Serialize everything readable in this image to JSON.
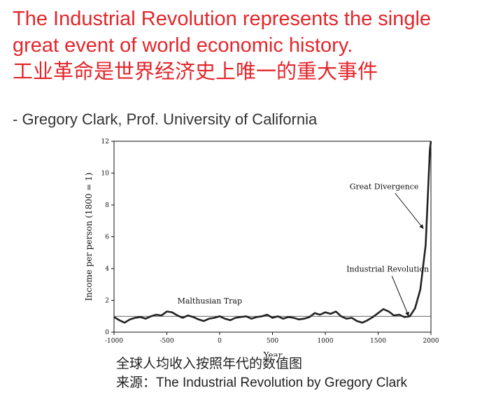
{
  "headline": {
    "line1": "The Industrial Revolution represents the single",
    "line2": "great event of world economic history.",
    "line3": "工业革命是世界经济史上唯一的重大事件"
  },
  "attribution": "- Gregory Clark, Prof. University of California",
  "caption": {
    "line1": "全球人均收入按照年代的数值图",
    "line2": "来源：The Industrial Revolution by Gregory Clark"
  },
  "colors": {
    "headline": "#e3262b",
    "line": "#222222"
  },
  "chart_data": {
    "type": "line",
    "title": "",
    "xlabel": "Year",
    "ylabel": "Income per person (1800 = 1)",
    "xlim": [
      -1000,
      2000
    ],
    "ylim": [
      0,
      12
    ],
    "xticks": [
      -1000,
      -500,
      0,
      500,
      1000,
      1500,
      2000
    ],
    "yticks": [
      0,
      2,
      4,
      6,
      8,
      10,
      12
    ],
    "grid": false,
    "reference_line": {
      "y": 1
    },
    "annotations": [
      {
        "text": "Malthusian Trap",
        "x": -400,
        "y": 1.8
      },
      {
        "text": "Industrial Revolution",
        "x": 1200,
        "y": 3.8,
        "arrow_to": [
          1790,
          1.0
        ]
      },
      {
        "text": "Great Divergence",
        "x": 1230,
        "y": 9.0,
        "arrow_to": [
          1930,
          6.5
        ]
      }
    ],
    "series": [
      {
        "values": [
          [
            -1000,
            0.95
          ],
          [
            -950,
            0.75
          ],
          [
            -900,
            0.6
          ],
          [
            -850,
            0.8
          ],
          [
            -800,
            0.9
          ],
          [
            -750,
            0.95
          ],
          [
            -700,
            0.85
          ],
          [
            -650,
            1.0
          ],
          [
            -600,
            1.1
          ],
          [
            -550,
            1.05
          ],
          [
            -500,
            1.3
          ],
          [
            -450,
            1.25
          ],
          [
            -400,
            1.05
          ],
          [
            -350,
            0.9
          ],
          [
            -300,
            1.05
          ],
          [
            -250,
            0.95
          ],
          [
            -200,
            0.8
          ],
          [
            -150,
            0.7
          ],
          [
            -100,
            0.85
          ],
          [
            -50,
            0.9
          ],
          [
            0,
            1.0
          ],
          [
            50,
            0.85
          ],
          [
            100,
            0.75
          ],
          [
            150,
            0.9
          ],
          [
            200,
            0.95
          ],
          [
            250,
            1.0
          ],
          [
            300,
            0.85
          ],
          [
            350,
            0.95
          ],
          [
            400,
            1.0
          ],
          [
            450,
            1.1
          ],
          [
            500,
            0.9
          ],
          [
            550,
            1.0
          ],
          [
            600,
            0.85
          ],
          [
            650,
            0.95
          ],
          [
            700,
            0.9
          ],
          [
            750,
            0.8
          ],
          [
            800,
            0.85
          ],
          [
            850,
            0.95
          ],
          [
            900,
            1.2
          ],
          [
            950,
            1.1
          ],
          [
            1000,
            1.25
          ],
          [
            1050,
            1.15
          ],
          [
            1100,
            1.3
          ],
          [
            1150,
            1.0
          ],
          [
            1200,
            0.85
          ],
          [
            1250,
            0.9
          ],
          [
            1300,
            0.7
          ],
          [
            1350,
            0.6
          ],
          [
            1400,
            0.75
          ],
          [
            1450,
            0.95
          ],
          [
            1500,
            1.2
          ],
          [
            1550,
            1.45
          ],
          [
            1600,
            1.3
          ],
          [
            1650,
            1.05
          ],
          [
            1700,
            1.1
          ],
          [
            1750,
            0.95
          ],
          [
            1800,
            1.0
          ],
          [
            1850,
            1.5
          ],
          [
            1900,
            2.7
          ],
          [
            1950,
            5.5
          ],
          [
            1990,
            11.5
          ],
          [
            2000,
            12.0
          ]
        ]
      }
    ]
  }
}
